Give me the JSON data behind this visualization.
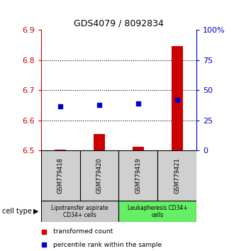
{
  "title": "GDS4079 / 8092834",
  "samples": [
    "GSM779418",
    "GSM779420",
    "GSM779419",
    "GSM779421"
  ],
  "bar_values": [
    6.503,
    6.555,
    6.512,
    6.848
  ],
  "bar_baseline": 6.5,
  "blue_values": [
    6.648,
    6.652,
    6.657,
    6.667
  ],
  "ylim": [
    6.5,
    6.9
  ],
  "yticks": [
    6.5,
    6.6,
    6.7,
    6.8,
    6.9
  ],
  "right_ylim": [
    0,
    100
  ],
  "right_yticks": [
    0,
    25,
    50,
    75,
    100
  ],
  "right_yticklabels": [
    "0",
    "25",
    "50",
    "75",
    "100%"
  ],
  "bar_color": "#cc0000",
  "blue_color": "#0000cc",
  "cell_type_label": "cell type",
  "cell_groups": [
    {
      "label": "Lipotransfer aspirate\nCD34+ cells",
      "indices": [
        0,
        1
      ],
      "color": "#c8c8c8"
    },
    {
      "label": "Leukapheresis CD34+\ncells",
      "indices": [
        2,
        3
      ],
      "color": "#66ee66"
    }
  ],
  "legend_items": [
    {
      "label": "transformed count",
      "color": "#cc0000"
    },
    {
      "label": "percentile rank within the sample",
      "color": "#0000cc"
    }
  ],
  "tick_color_left": "#cc0000",
  "tick_color_right": "#0000cc",
  "background_sample": "#d0d0d0",
  "bar_width": 0.3,
  "grid_yticks": [
    6.6,
    6.7,
    6.8
  ],
  "title_fontsize": 9,
  "tick_fontsize": 8,
  "sample_fontsize": 6,
  "legend_fontsize": 6.5,
  "cell_fontsize": 5.5
}
